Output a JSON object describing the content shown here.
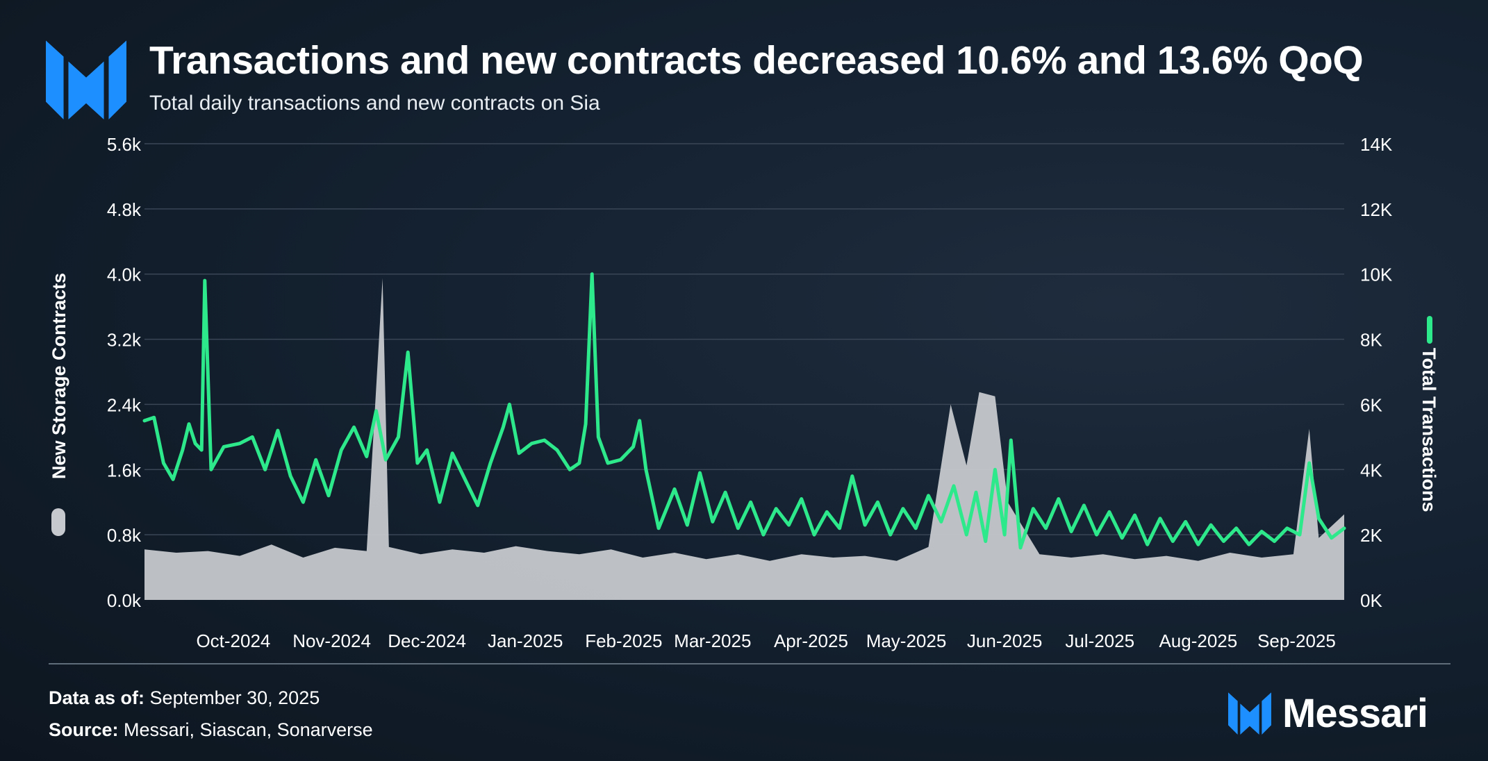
{
  "header": {
    "title": "Transactions and new contracts decreased 10.6% and 13.6% QoQ",
    "subtitle": "Total daily transactions and new contracts on Sia"
  },
  "footer": {
    "data_as_of_label": "Data as of:",
    "data_as_of_value": " September 30, 2025",
    "source_label": "Source:",
    "source_value": " Messari, Siascan, Sonarverse",
    "brand_name": "Messari"
  },
  "colors": {
    "background": "#142130",
    "transactions_line": "#2ee88c",
    "contracts_area": "#c6c9cd",
    "grid": "#3a4656",
    "brand_blue": "#1e8fff"
  },
  "icons": {
    "logo": "messari-logo-icon",
    "legend_left": "grey-pill-icon",
    "legend_right": "green-line-icon"
  },
  "chart_data": {
    "type": "line+area",
    "x_start": "2024-09-17",
    "x_end": "2025-09-30",
    "x_tick_labels": [
      "Oct-2024",
      "Nov-2024",
      "Dec-2024",
      "Jan-2025",
      "Feb-2025",
      "Mar-2025",
      "Apr-2025",
      "May-2025",
      "Jun-2025",
      "Jul-2025",
      "Aug-2025",
      "Sep-2025"
    ],
    "y_left": {
      "label": "New Storage Contracts",
      "range": [
        0,
        5600
      ],
      "tick_labels": [
        "0.0k",
        "0.8k",
        "1.6k",
        "2.4k",
        "3.2k",
        "4.0k",
        "4.8k",
        "5.6k"
      ]
    },
    "y_right": {
      "label": "Total Transactions",
      "range": [
        0,
        14000
      ],
      "tick_labels": [
        "0K",
        "2K",
        "4K",
        "6K",
        "8K",
        "10K",
        "12K",
        "14K"
      ]
    },
    "grid": true,
    "series": [
      {
        "name": "New Storage Contracts",
        "axis": "left",
        "style": "area",
        "points": [
          [
            "2024-09-17",
            620
          ],
          [
            "2024-09-27",
            580
          ],
          [
            "2024-10-07",
            600
          ],
          [
            "2024-10-17",
            540
          ],
          [
            "2024-10-27",
            680
          ],
          [
            "2024-11-06",
            520
          ],
          [
            "2024-11-16",
            640
          ],
          [
            "2024-11-26",
            600
          ],
          [
            "2024-12-01",
            3950
          ],
          [
            "2024-12-03",
            650
          ],
          [
            "2024-12-13",
            560
          ],
          [
            "2024-12-23",
            620
          ],
          [
            "2025-01-02",
            580
          ],
          [
            "2025-01-12",
            660
          ],
          [
            "2025-01-22",
            600
          ],
          [
            "2025-02-01",
            560
          ],
          [
            "2025-02-11",
            620
          ],
          [
            "2025-02-21",
            520
          ],
          [
            "2025-03-03",
            580
          ],
          [
            "2025-03-13",
            500
          ],
          [
            "2025-03-23",
            560
          ],
          [
            "2025-04-02",
            480
          ],
          [
            "2025-04-12",
            560
          ],
          [
            "2025-04-22",
            520
          ],
          [
            "2025-05-02",
            540
          ],
          [
            "2025-05-12",
            480
          ],
          [
            "2025-05-22",
            650
          ],
          [
            "2025-05-29",
            2400
          ],
          [
            "2025-06-03",
            1650
          ],
          [
            "2025-06-07",
            2550
          ],
          [
            "2025-06-12",
            2500
          ],
          [
            "2025-06-16",
            1200
          ],
          [
            "2025-06-26",
            560
          ],
          [
            "2025-07-06",
            520
          ],
          [
            "2025-07-16",
            560
          ],
          [
            "2025-07-26",
            500
          ],
          [
            "2025-08-05",
            540
          ],
          [
            "2025-08-15",
            480
          ],
          [
            "2025-08-25",
            580
          ],
          [
            "2025-09-04",
            520
          ],
          [
            "2025-09-14",
            560
          ],
          [
            "2025-09-19",
            2100
          ],
          [
            "2025-09-22",
            760
          ],
          [
            "2025-09-30",
            1050
          ]
        ]
      },
      {
        "name": "Total Transactions",
        "axis": "right",
        "style": "line",
        "points": [
          [
            "2024-09-17",
            5500
          ],
          [
            "2024-09-20",
            5600
          ],
          [
            "2024-09-23",
            4200
          ],
          [
            "2024-09-26",
            3700
          ],
          [
            "2024-09-29",
            4600
          ],
          [
            "2024-10-01",
            5400
          ],
          [
            "2024-10-03",
            4800
          ],
          [
            "2024-10-05",
            4600
          ],
          [
            "2024-10-06",
            9800
          ],
          [
            "2024-10-08",
            4000
          ],
          [
            "2024-10-12",
            4700
          ],
          [
            "2024-10-17",
            4800
          ],
          [
            "2024-10-21",
            5000
          ],
          [
            "2024-10-25",
            4000
          ],
          [
            "2024-10-29",
            5200
          ],
          [
            "2024-11-02",
            3800
          ],
          [
            "2024-11-06",
            3000
          ],
          [
            "2024-11-10",
            4300
          ],
          [
            "2024-11-14",
            3200
          ],
          [
            "2024-11-18",
            4600
          ],
          [
            "2024-11-22",
            5300
          ],
          [
            "2024-11-26",
            4400
          ],
          [
            "2024-11-29",
            5800
          ],
          [
            "2024-12-02",
            4300
          ],
          [
            "2024-12-06",
            5000
          ],
          [
            "2024-12-09",
            7600
          ],
          [
            "2024-12-12",
            4200
          ],
          [
            "2024-12-15",
            4600
          ],
          [
            "2024-12-19",
            3000
          ],
          [
            "2024-12-23",
            4500
          ],
          [
            "2024-12-27",
            3700
          ],
          [
            "2024-12-31",
            2900
          ],
          [
            "2025-01-04",
            4200
          ],
          [
            "2025-01-08",
            5300
          ],
          [
            "2025-01-10",
            6000
          ],
          [
            "2025-01-13",
            4500
          ],
          [
            "2025-01-17",
            4800
          ],
          [
            "2025-01-21",
            4900
          ],
          [
            "2025-01-25",
            4600
          ],
          [
            "2025-01-29",
            4000
          ],
          [
            "2025-02-01",
            4200
          ],
          [
            "2025-02-03",
            5400
          ],
          [
            "2025-02-05",
            10000
          ],
          [
            "2025-02-07",
            5000
          ],
          [
            "2025-02-10",
            4200
          ],
          [
            "2025-02-14",
            4300
          ],
          [
            "2025-02-18",
            4700
          ],
          [
            "2025-02-20",
            5500
          ],
          [
            "2025-02-22",
            4000
          ],
          [
            "2025-02-26",
            2200
          ],
          [
            "2025-03-03",
            3400
          ],
          [
            "2025-03-07",
            2300
          ],
          [
            "2025-03-11",
            3900
          ],
          [
            "2025-03-15",
            2400
          ],
          [
            "2025-03-19",
            3300
          ],
          [
            "2025-03-23",
            2200
          ],
          [
            "2025-03-27",
            3000
          ],
          [
            "2025-03-31",
            2000
          ],
          [
            "2025-04-04",
            2800
          ],
          [
            "2025-04-08",
            2300
          ],
          [
            "2025-04-12",
            3100
          ],
          [
            "2025-04-16",
            2000
          ],
          [
            "2025-04-20",
            2700
          ],
          [
            "2025-04-24",
            2200
          ],
          [
            "2025-04-28",
            3800
          ],
          [
            "2025-05-02",
            2300
          ],
          [
            "2025-05-06",
            3000
          ],
          [
            "2025-05-10",
            2000
          ],
          [
            "2025-05-14",
            2800
          ],
          [
            "2025-05-18",
            2200
          ],
          [
            "2025-05-22",
            3200
          ],
          [
            "2025-05-26",
            2400
          ],
          [
            "2025-05-30",
            3500
          ],
          [
            "2025-06-03",
            2000
          ],
          [
            "2025-06-06",
            3300
          ],
          [
            "2025-06-09",
            1800
          ],
          [
            "2025-06-12",
            4000
          ],
          [
            "2025-06-15",
            2000
          ],
          [
            "2025-06-17",
            4900
          ],
          [
            "2025-06-20",
            1600
          ],
          [
            "2025-06-24",
            2800
          ],
          [
            "2025-06-28",
            2200
          ],
          [
            "2025-07-02",
            3100
          ],
          [
            "2025-07-06",
            2100
          ],
          [
            "2025-07-10",
            2900
          ],
          [
            "2025-07-14",
            2000
          ],
          [
            "2025-07-18",
            2700
          ],
          [
            "2025-07-22",
            1900
          ],
          [
            "2025-07-26",
            2600
          ],
          [
            "2025-07-30",
            1700
          ],
          [
            "2025-08-03",
            2500
          ],
          [
            "2025-08-07",
            1800
          ],
          [
            "2025-08-11",
            2400
          ],
          [
            "2025-08-15",
            1700
          ],
          [
            "2025-08-19",
            2300
          ],
          [
            "2025-08-23",
            1800
          ],
          [
            "2025-08-27",
            2200
          ],
          [
            "2025-08-31",
            1700
          ],
          [
            "2025-09-04",
            2100
          ],
          [
            "2025-09-08",
            1800
          ],
          [
            "2025-09-12",
            2200
          ],
          [
            "2025-09-16",
            2000
          ],
          [
            "2025-09-19",
            4200
          ],
          [
            "2025-09-22",
            2500
          ],
          [
            "2025-09-26",
            1900
          ],
          [
            "2025-09-30",
            2200
          ]
        ]
      }
    ]
  }
}
